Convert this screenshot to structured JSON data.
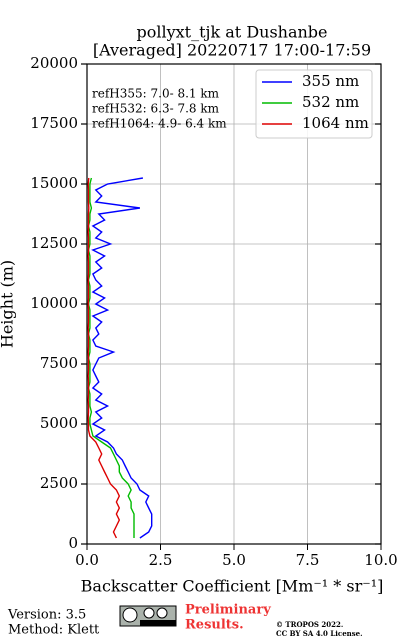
{
  "chart_data": {
    "type": "line",
    "title": "pollyxt_tjk at Dushanbe",
    "subtitle": "[Averaged] 20220717 17:00-17:59",
    "x_label": "Backscatter Coefficient [Mm⁻¹ * sr⁻¹]",
    "y_label": "Height (m)",
    "annotations": [
      "refH355:  7.0- 8.1 km",
      "refH532:  6.3- 7.8 km",
      "refH1064:  4.9- 6.4 km"
    ],
    "x": [
      250,
      500,
      750,
      1000,
      1250,
      1500,
      1750,
      2000,
      2250,
      2500,
      2750,
      3000,
      3250,
      3500,
      3750,
      4000,
      4250,
      4500,
      4750,
      5000,
      5250,
      5500,
      5750,
      6000,
      6250,
      6500,
      6750,
      7000,
      7250,
      7500,
      7750,
      8000,
      8250,
      8500,
      8750,
      9000,
      9250,
      9500,
      9750,
      10000,
      10250,
      10500,
      10750,
      11000,
      11250,
      11500,
      11750,
      12000,
      12250,
      12500,
      12750,
      13000,
      13250,
      13500,
      13750,
      14000,
      14250,
      14500,
      14750,
      15000,
      15250
    ],
    "series": [
      {
        "name": "355 nm",
        "color": "#0000ff",
        "values": [
          1.8,
          2.1,
          2.2,
          2.2,
          2.2,
          2.1,
          2.0,
          2.1,
          1.8,
          1.7,
          1.5,
          1.4,
          1.3,
          1.2,
          1.0,
          0.9,
          0.7,
          0.3,
          0.6,
          0.2,
          0.5,
          0.3,
          0.7,
          0.3,
          0.5,
          0.2,
          0.4,
          0.3,
          0.2,
          0.3,
          0.4,
          0.9,
          0.3,
          0.2,
          0.4,
          0.3,
          0.5,
          0.2,
          0.7,
          0.3,
          0.6,
          0.2,
          0.5,
          0.3,
          0.2,
          0.5,
          0.3,
          0.6,
          0.2,
          0.8,
          0.3,
          0.5,
          0.2,
          0.6,
          0.4,
          1.8,
          0.3,
          0.5,
          0.3,
          0.7,
          1.9
        ]
      },
      {
        "name": "532 nm",
        "color": "#00bb00",
        "values": [
          1.6,
          1.6,
          1.6,
          1.6,
          1.6,
          1.5,
          1.5,
          1.4,
          1.5,
          1.4,
          1.2,
          1.1,
          1.1,
          1.0,
          0.9,
          0.8,
          0.5,
          0.2,
          0.15,
          0.1,
          0.1,
          0.15,
          0.1,
          0.1,
          0.1,
          0.05,
          0.1,
          0.1,
          0.1,
          0.1,
          0.05,
          0.1,
          0.1,
          0.1,
          0.05,
          0.1,
          0.1,
          0.1,
          0.1,
          0.05,
          0.1,
          0.1,
          0.1,
          0.05,
          0.1,
          0.1,
          0.1,
          0.1,
          0.05,
          0.1,
          0.1,
          0.1,
          0.05,
          0.1,
          0.1,
          0.15,
          0.1,
          0.1,
          0.1,
          0.1,
          0.15
        ]
      },
      {
        "name": "1064 nm",
        "color": "#dd0000",
        "values": [
          1.0,
          0.9,
          1.0,
          1.1,
          1.0,
          1.1,
          1.0,
          1.1,
          1.0,
          0.8,
          0.7,
          0.6,
          0.5,
          0.4,
          0.5,
          0.4,
          0.3,
          0.1,
          0.05,
          0.05,
          0.04,
          0.05,
          0.05,
          0.04,
          0.05,
          0.05,
          0.05,
          0.04,
          0.05,
          0.05,
          0.05,
          0.04,
          0.05,
          0.05,
          0.05,
          0.04,
          0.05,
          0.05,
          0.05,
          0.04,
          0.05,
          0.05,
          0.05,
          0.04,
          0.05,
          0.05,
          0.05,
          0.04,
          0.05,
          0.05,
          0.05,
          0.04,
          0.05,
          0.05,
          0.05,
          0.06,
          0.05,
          0.05,
          0.05,
          0.04,
          0.06
        ]
      }
    ],
    "xlim": [
      0,
      10
    ],
    "xticks": [
      {
        "value": 0,
        "label": "0.0"
      },
      2.5,
      {
        "value": 5,
        "label": "5.0"
      },
      7.5,
      {
        "value": 10,
        "label": "10.0"
      }
    ],
    "ylim": [
      0,
      20000
    ],
    "yticks": [
      0,
      2500,
      5000,
      7500,
      10000,
      12500,
      15000,
      17500,
      20000
    ],
    "grid": true,
    "legend": "upper right"
  },
  "footer": {
    "version": "Version: 3.5",
    "method": "Klett",
    "method_label": "Method: Klett",
    "preliminary": [
      "Preliminary",
      "Results."
    ],
    "copyright": [
      "© TROPOS 2022.",
      "CC BY SA 4.0 License."
    ]
  }
}
